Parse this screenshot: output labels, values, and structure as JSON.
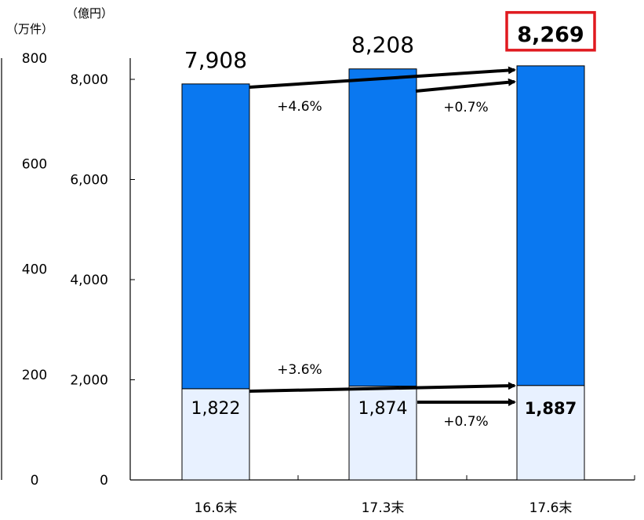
{
  "chart_data": {
    "type": "bar",
    "stacked": true,
    "categories": [
      "16.6末",
      "17.3末",
      "17.6末"
    ],
    "series": [
      {
        "values": [
          1822,
          1874,
          1887
        ],
        "color": "#e8f1ff"
      },
      {
        "values": [
          6086,
          6334,
          6382
        ],
        "color": "#0a78f0"
      }
    ],
    "totals": [
      7908,
      8208,
      8269
    ],
    "total_labels": [
      "7,908",
      "8,208",
      "8,269"
    ],
    "bottom_labels": [
      "1,822",
      "1,874",
      "1,887"
    ],
    "highlight_index": 2,
    "highlight_color": "#e0191f",
    "ylim": [
      0,
      8000
    ],
    "yticks": [
      0,
      2000,
      4000,
      6000,
      8000
    ],
    "ytick_labels": [
      "0",
      "2,000",
      "4,000",
      "6,000",
      "8,000"
    ],
    "y2lim": [
      0,
      800
    ],
    "y2ticks": [
      0,
      200,
      400,
      600,
      800
    ],
    "y2tick_labels": [
      "0",
      "200",
      "400",
      "600",
      "800"
    ],
    "ylabel": "（億円）",
    "y2label": "（万件）",
    "annotations": {
      "total_growth": [
        "+4.6%",
        "+0.7%"
      ],
      "bottom_growth": [
        "+3.6%",
        "+0.7%"
      ]
    },
    "grid": false
  }
}
